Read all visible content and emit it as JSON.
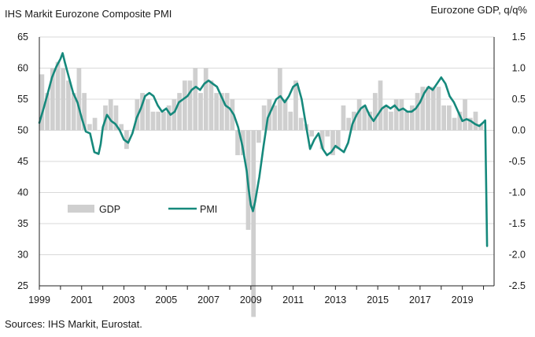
{
  "chart_data": {
    "type": "bar+line",
    "left_title": "IHS Markit Eurozone Composite PMI",
    "right_title": "Eurozone GDP, q/q%",
    "source": "Sources: IHS Markit, Eurostat.",
    "x_range": [
      1999.0,
      2020.5
    ],
    "x_ticks": [
      1999,
      2001,
      2003,
      2005,
      2007,
      2009,
      2011,
      2013,
      2015,
      2017,
      2019
    ],
    "y_left": {
      "min": 25,
      "max": 65,
      "ticks": [
        25,
        30,
        35,
        40,
        45,
        50,
        55,
        60,
        65
      ]
    },
    "y_right": {
      "min": -2.5,
      "max": 1.5,
      "ticks": [
        "-2.5",
        "-2.0",
        "-1.5",
        "-1.0",
        "-0.5",
        "0.0",
        "0.5",
        "1.0",
        "1.5"
      ]
    },
    "legend": {
      "gdp": "GDP",
      "pmi": "PMI"
    },
    "colors": {
      "gdp": "#cfcfcf",
      "pmi": "#16897c",
      "axis": "#222222",
      "grid": "#d9d9d9"
    },
    "gdp_series": {
      "name": "GDP",
      "axis": "right",
      "quarters": [
        "1999Q1",
        "1999Q2",
        "1999Q3",
        "1999Q4",
        "2000Q1",
        "2000Q2",
        "2000Q3",
        "2000Q4",
        "2001Q1",
        "2001Q2",
        "2001Q3",
        "2001Q4",
        "2002Q1",
        "2002Q2",
        "2002Q3",
        "2002Q4",
        "2003Q1",
        "2003Q2",
        "2003Q3",
        "2003Q4",
        "2004Q1",
        "2004Q2",
        "2004Q3",
        "2004Q4",
        "2005Q1",
        "2005Q2",
        "2005Q3",
        "2005Q4",
        "2006Q1",
        "2006Q2",
        "2006Q3",
        "2006Q4",
        "2007Q1",
        "2007Q2",
        "2007Q3",
        "2007Q4",
        "2008Q1",
        "2008Q2",
        "2008Q3",
        "2008Q4",
        "2009Q1",
        "2009Q2",
        "2009Q3",
        "2009Q4",
        "2010Q1",
        "2010Q2",
        "2010Q3",
        "2010Q4",
        "2011Q1",
        "2011Q2",
        "2011Q3",
        "2011Q4",
        "2012Q1",
        "2012Q2",
        "2012Q3",
        "2012Q4",
        "2013Q1",
        "2013Q2",
        "2013Q3",
        "2013Q4",
        "2014Q1",
        "2014Q2",
        "2014Q3",
        "2014Q4",
        "2015Q1",
        "2015Q2",
        "2015Q3",
        "2015Q4",
        "2016Q1",
        "2016Q2",
        "2016Q3",
        "2016Q4",
        "2017Q1",
        "2017Q2",
        "2017Q3",
        "2017Q4",
        "2018Q1",
        "2018Q2",
        "2018Q3",
        "2018Q4",
        "2019Q1",
        "2019Q2",
        "2019Q3",
        "2019Q4"
      ],
      "values": [
        0.9,
        0.6,
        1.0,
        1.1,
        1.0,
        0.8,
        0.6,
        1.0,
        0.6,
        0.1,
        0.2,
        0.0,
        0.4,
        0.5,
        0.4,
        0.1,
        -0.3,
        0.0,
        0.5,
        0.6,
        0.5,
        0.3,
        0.3,
        0.3,
        0.4,
        0.5,
        0.6,
        0.8,
        0.8,
        1.0,
        0.6,
        1.0,
        0.8,
        0.6,
        0.6,
        0.6,
        0.5,
        -0.4,
        -0.4,
        -1.6,
        -3.0,
        -0.2,
        0.4,
        0.5,
        0.4,
        1.0,
        0.5,
        0.3,
        0.8,
        0.2,
        0.1,
        -0.1,
        0.0,
        -0.3,
        -0.1,
        -0.4,
        -0.3,
        0.4,
        0.2,
        0.3,
        0.5,
        0.4,
        0.3,
        0.6,
        0.8,
        0.4,
        0.3,
        0.5,
        0.5,
        0.3,
        0.4,
        0.6,
        0.7,
        0.7,
        0.7,
        0.7,
        0.4,
        0.4,
        0.2,
        0.3,
        0.5,
        0.2,
        0.3,
        0.1
      ]
    },
    "pmi_series": {
      "name": "PMI",
      "axis": "left",
      "x": [
        1999.0,
        1999.2,
        1999.4,
        1999.6,
        1999.8,
        2000.0,
        2000.1,
        2000.2,
        2000.4,
        2000.6,
        2000.8,
        2001.0,
        2001.2,
        2001.4,
        2001.6,
        2001.8,
        2001.9,
        2002.0,
        2002.2,
        2002.4,
        2002.6,
        2002.8,
        2003.0,
        2003.2,
        2003.4,
        2003.6,
        2003.8,
        2004.0,
        2004.2,
        2004.4,
        2004.6,
        2004.8,
        2005.0,
        2005.2,
        2005.4,
        2005.6,
        2005.8,
        2006.0,
        2006.2,
        2006.4,
        2006.6,
        2006.8,
        2007.0,
        2007.2,
        2007.4,
        2007.6,
        2007.8,
        2008.0,
        2008.2,
        2008.4,
        2008.6,
        2008.8,
        2008.9,
        2009.0,
        2009.1,
        2009.2,
        2009.4,
        2009.6,
        2009.8,
        2010.0,
        2010.2,
        2010.4,
        2010.6,
        2010.8,
        2011.0,
        2011.2,
        2011.4,
        2011.6,
        2011.8,
        2012.0,
        2012.2,
        2012.4,
        2012.6,
        2012.8,
        2013.0,
        2013.2,
        2013.4,
        2013.6,
        2013.8,
        2014.0,
        2014.2,
        2014.4,
        2014.6,
        2014.8,
        2015.0,
        2015.2,
        2015.4,
        2015.6,
        2015.8,
        2016.0,
        2016.2,
        2016.4,
        2016.6,
        2016.8,
        2017.0,
        2017.2,
        2017.4,
        2017.6,
        2017.8,
        2018.0,
        2018.2,
        2018.4,
        2018.6,
        2018.8,
        2019.0,
        2019.2,
        2019.4,
        2019.6,
        2019.8,
        2020.0,
        2020.08,
        2020.17
      ],
      "values": [
        51.2,
        53.5,
        56.0,
        58.5,
        60.2,
        61.5,
        62.4,
        61.0,
        58.5,
        56.0,
        54.5,
        52.0,
        49.8,
        49.5,
        46.5,
        46.2,
        47.8,
        50.5,
        52.5,
        51.5,
        51.0,
        50.0,
        48.5,
        48.0,
        49.5,
        52.0,
        53.5,
        55.5,
        56.0,
        55.5,
        54.0,
        53.0,
        53.5,
        52.5,
        53.0,
        54.5,
        55.0,
        55.5,
        56.5,
        57.0,
        56.5,
        57.5,
        58.0,
        57.5,
        57.0,
        55.5,
        54.0,
        53.5,
        52.5,
        50.5,
        47.5,
        43.5,
        40.5,
        38.0,
        37.0,
        38.5,
        42.5,
        47.5,
        52.0,
        53.5,
        55.0,
        55.5,
        54.5,
        55.5,
        57.0,
        57.5,
        55.0,
        51.0,
        47.0,
        48.5,
        49.5,
        47.0,
        46.0,
        46.5,
        47.5,
        47.0,
        46.5,
        48.0,
        51.0,
        52.5,
        53.5,
        54.0,
        52.5,
        51.5,
        52.5,
        53.5,
        54.0,
        53.5,
        54.0,
        53.2,
        53.5,
        53.0,
        53.0,
        53.5,
        54.5,
        56.0,
        57.0,
        56.5,
        57.5,
        58.5,
        57.5,
        55.5,
        54.5,
        53.0,
        51.5,
        51.8,
        51.5,
        51.0,
        50.7,
        51.3,
        51.6,
        31.4
      ]
    }
  }
}
